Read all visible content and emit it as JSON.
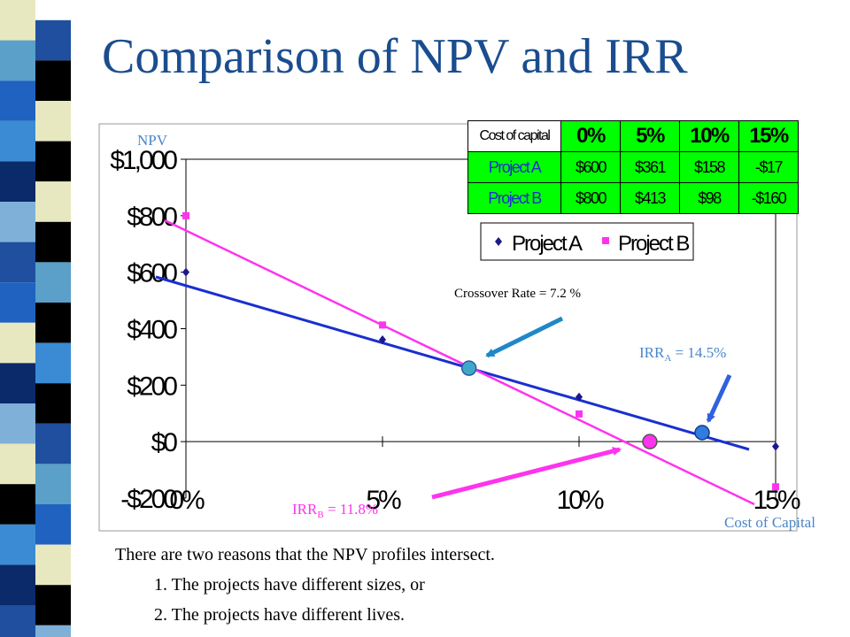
{
  "slide": {
    "title": "Comparison of NPV and IRR",
    "bullets": {
      "intro": "There are two reasons that the NPV profiles intersect.",
      "reason1": "1. The projects have different sizes, or",
      "reason2": "2. The projects have different lives."
    }
  },
  "table": {
    "header": [
      "Cost of capital",
      "0%",
      "5%",
      "10%",
      "15%"
    ],
    "rows": [
      {
        "label": "Project A",
        "values": [
          "$600",
          "$361",
          "$158",
          "-$17"
        ]
      },
      {
        "label": "Project B",
        "values": [
          "$800",
          "$413",
          "$98",
          "-$160"
        ]
      }
    ]
  },
  "annotations": {
    "npv_label": "NPV",
    "cost_of_capital_label": "Cost of Capital",
    "crossover": "Crossover Rate = 7.2 %",
    "irr_a_prefix": "IRR",
    "irr_a_sub": "A",
    "irr_a_value": " = 14.5%",
    "irr_b_prefix": "IRR",
    "irr_b_sub": "B",
    "irr_b_value": " = 11.8%"
  },
  "colors": {
    "title": "#1a4d8f",
    "project_a": "#1a2fd0",
    "project_b": "#ff33ee",
    "annotation": "#4a86c8",
    "arrow": "#1e88c8",
    "table_fill": "#00ff00"
  },
  "chart_data": {
    "type": "line",
    "x": [
      0,
      5,
      10,
      15
    ],
    "categories": [
      "0%",
      "5%",
      "10%",
      "15%"
    ],
    "xlim": [
      0,
      15
    ],
    "ylim": [
      -200,
      1000
    ],
    "yticks": [
      -200,
      0,
      200,
      400,
      600,
      800,
      1000
    ],
    "ytick_labels": [
      "-$200",
      "$0",
      "$200",
      "$400",
      "$600",
      "$800",
      "$1,000"
    ],
    "series": [
      {
        "name": "Project A",
        "values": [
          600,
          361,
          158,
          -17
        ],
        "marker": "diamond",
        "color": "#1a2fd0"
      },
      {
        "name": "Project B",
        "values": [
          800,
          413,
          98,
          -160
        ],
        "marker": "square",
        "color": "#ff33ee"
      }
    ],
    "crossover": {
      "x": 7.2,
      "y": 260
    },
    "irr_a": 14.5,
    "irr_b": 11.8,
    "legend": "top-right",
    "grid": false
  }
}
